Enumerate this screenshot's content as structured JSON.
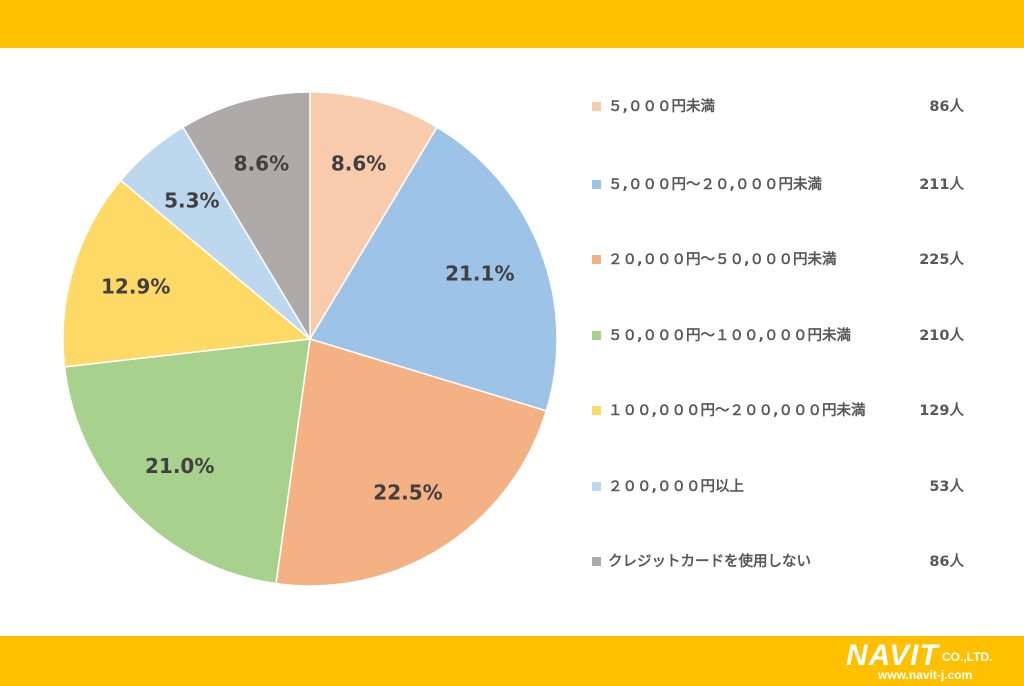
{
  "chart_data": {
    "type": "pie",
    "title": "",
    "start_angle_deg": 0,
    "direction": "clockwise",
    "slices": [
      {
        "label": "５,０００円未満",
        "count": "86人",
        "value": 8.6,
        "value_label": "8.6%",
        "color": "#F8CBAD"
      },
      {
        "label": "５,０００円～２０,０００円未満",
        "count": "211人",
        "value": 21.1,
        "value_label": "21.1%",
        "color": "#9DC3E6"
      },
      {
        "label": "２０,０００円～５０,０００円未満",
        "count": "225人",
        "value": 22.5,
        "value_label": "22.5%",
        "color": "#F4B183"
      },
      {
        "label": "５０,０００円～１００,０００円未満",
        "count": "210人",
        "value": 21.0,
        "value_label": "21.0%",
        "color": "#A9D18E"
      },
      {
        "label": "１００,０００円～２００,０００円未満",
        "count": "129人",
        "value": 12.9,
        "value_label": "12.9%",
        "color": "#FFD966"
      },
      {
        "label": "２００,０００円以上",
        "count": "53人",
        "value": 5.3,
        "value_label": "5.3%",
        "color": "#BDD7EE"
      },
      {
        "label": "クレジットカードを使用しない",
        "count": "86人",
        "value": 8.6,
        "value_label": "8.6%",
        "color": "#AEAAAA"
      }
    ],
    "legend_position": "right"
  },
  "branding": {
    "company": "NAVIT",
    "suffix": "CO.,LTD.",
    "url": "www.navit-j.com",
    "band_color": "#FFC000"
  }
}
